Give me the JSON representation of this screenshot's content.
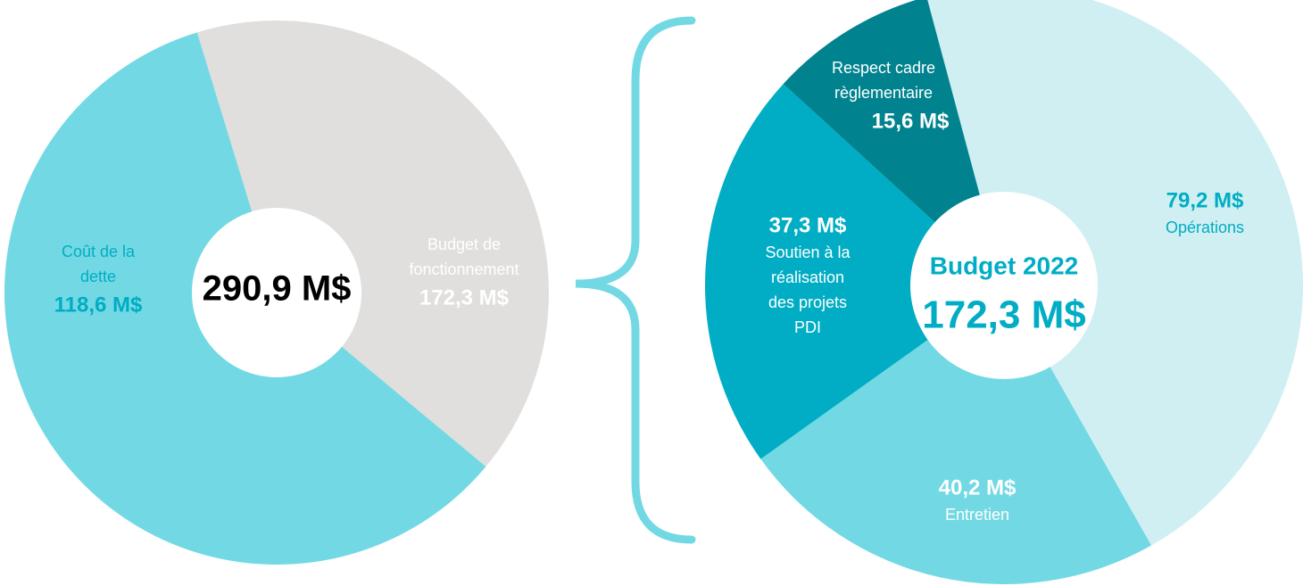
{
  "chart_data": [
    {
      "type": "donut",
      "center_label": "290,9 M$",
      "slices": [
        {
          "label": [
            "Coût de la",
            "dette"
          ],
          "value": 118.6,
          "value_label": "118,6 M$",
          "color": "#e0dfdd",
          "text_color": "#00adc4"
        },
        {
          "label": [
            "Budget de",
            "fonctionnement"
          ],
          "value": 172.3,
          "value_label": "172,3 M$",
          "color": "#72d9e4",
          "text_color": "#ffffff"
        }
      ]
    },
    {
      "type": "donut",
      "title": "Budget 2022",
      "center_label": "172,3 M$",
      "slices": [
        {
          "label": [
            "Opérations"
          ],
          "value": 79.2,
          "value_label": "79,2 M$",
          "color": "#d0eff2",
          "text_color": "#00adc4"
        },
        {
          "label": [
            "Entretien"
          ],
          "value": 40.2,
          "value_label": "40,2 M$",
          "color": "#72d9e4",
          "text_color": "#ffffff"
        },
        {
          "label": [
            "Soutien à la",
            "réalisation",
            "des projets",
            "PDI"
          ],
          "value": 37.3,
          "value_label": "37,3 M$",
          "color": "#00adc4",
          "text_color": "#ffffff"
        },
        {
          "label": [
            "Respect cadre",
            "règlementaire"
          ],
          "value": 15.6,
          "value_label": "15,6 M$",
          "color": "#00838f",
          "text_color": "#ffffff"
        }
      ]
    }
  ]
}
